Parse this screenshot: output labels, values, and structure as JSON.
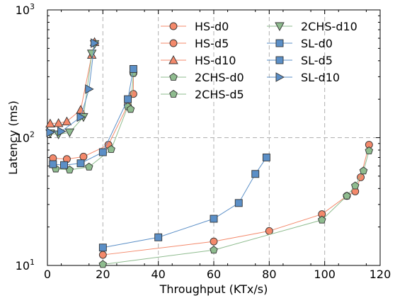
{
  "chart_data": {
    "type": "line",
    "xlabel": "Throughput (KTx/s)",
    "ylabel": "Latency (ms)",
    "xlim": [
      0,
      120
    ],
    "ylim": [
      10,
      1000
    ],
    "yscale": "log",
    "x_ticks": [
      "0",
      "20",
      "40",
      "60",
      "80",
      "100",
      "120"
    ],
    "y_ticks": [
      {
        "base": "10",
        "exp": "1"
      },
      {
        "base": "10",
        "exp": "2"
      },
      {
        "base": "10",
        "exp": "3"
      }
    ],
    "grid": "dashed at x=20,40,60,80,100 and y=100",
    "legend_position": "top, two columns",
    "colors": {
      "hs": "#f4896b",
      "chs": "#8fbc8f",
      "sl": "#5b8fc7"
    },
    "series": [
      {
        "name": "HS-d0",
        "marker": "circle",
        "color": "#f4896b",
        "points": [
          [
            20,
            12.1
          ],
          [
            60,
            15.4
          ],
          [
            80,
            18.6
          ],
          [
            99,
            25.2
          ],
          [
            108,
            35
          ],
          [
            111,
            38
          ],
          [
            113,
            49
          ],
          [
            116,
            88
          ]
        ]
      },
      {
        "name": "HS-d5",
        "marker": "circle",
        "color": "#f4896b",
        "points": [
          [
            2,
            69
          ],
          [
            7,
            68
          ],
          [
            13,
            71
          ],
          [
            22,
            88
          ],
          [
            29,
            180
          ],
          [
            31,
            220
          ],
          [
            31,
            320
          ]
        ]
      },
      {
        "name": "HS-d10",
        "marker": "triangle-up",
        "color": "#f4896b",
        "points": [
          [
            1,
            129
          ],
          [
            4,
            130
          ],
          [
            7,
            134
          ],
          [
            12,
            165
          ],
          [
            16,
            445
          ],
          [
            17,
            560
          ]
        ]
      },
      {
        "name": "2CHS-d0",
        "marker": "pentagon",
        "color": "#8fbc8f",
        "points": [
          [
            20,
            10.2
          ],
          [
            60,
            13.2
          ],
          [
            99,
            22.7
          ],
          [
            108,
            35
          ],
          [
            111,
            42
          ],
          [
            114,
            55
          ],
          [
            116,
            79
          ]
        ]
      },
      {
        "name": "2CHS-d5",
        "marker": "pentagon",
        "color": "#8fbc8f",
        "points": [
          [
            3,
            57
          ],
          [
            8,
            56
          ],
          [
            15,
            59
          ],
          [
            23,
            81
          ],
          [
            29,
            175
          ],
          [
            30,
            167
          ],
          [
            31,
            320
          ]
        ]
      },
      {
        "name": "2CHS-d10",
        "marker": "triangle-down",
        "color": "#8fbc8f",
        "points": [
          [
            1,
            108
          ],
          [
            4,
            106
          ],
          [
            8,
            110
          ],
          [
            13,
            145
          ],
          [
            16,
            455
          ],
          [
            17,
            540
          ]
        ]
      },
      {
        "name": "SL-d0",
        "marker": "square",
        "color": "#5b8fc7",
        "points": [
          [
            20,
            13.8
          ],
          [
            40,
            16.6
          ],
          [
            60,
            23.2
          ],
          [
            69,
            30.8
          ],
          [
            75,
            52
          ],
          [
            79,
            70
          ]
        ]
      },
      {
        "name": "SL-d5",
        "marker": "square",
        "color": "#5b8fc7",
        "points": [
          [
            2,
            62
          ],
          [
            6,
            61
          ],
          [
            12,
            63
          ],
          [
            20,
            77
          ],
          [
            29,
            200
          ],
          [
            31,
            345
          ]
        ]
      },
      {
        "name": "SL-d10",
        "marker": "triangle-right",
        "color": "#5b8fc7",
        "points": [
          [
            1,
            110
          ],
          [
            5,
            112
          ],
          [
            12,
            145
          ],
          [
            15,
            240
          ],
          [
            17,
            550
          ]
        ]
      }
    ]
  }
}
